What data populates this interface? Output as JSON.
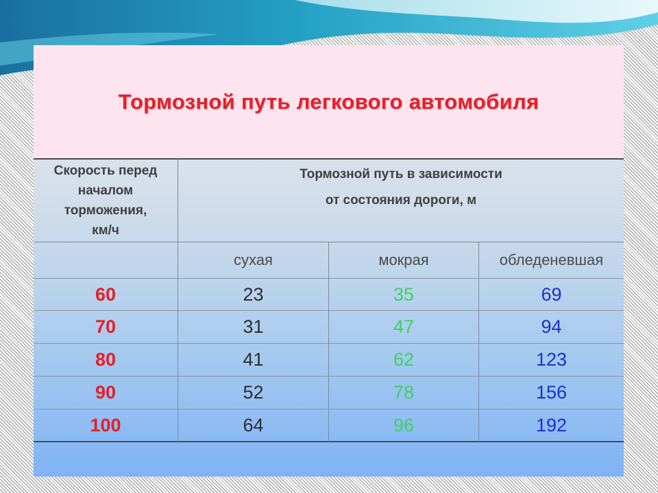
{
  "title": "Тормозной путь легкового автомобиля",
  "headers": {
    "speed_lines": [
      "Скорость перед",
      "началом",
      "торможения,",
      "км/ч"
    ],
    "distance_lines": [
      "Тормозной путь в зависимости",
      "от состояния дороги, м"
    ]
  },
  "conditions": [
    "сухая",
    "мокрая",
    "обледеневшая"
  ],
  "rows": [
    {
      "speed": "60",
      "dry": "23",
      "wet": "35",
      "ice": "69"
    },
    {
      "speed": "70",
      "dry": "31",
      "wet": "47",
      "ice": "94"
    },
    {
      "speed": "80",
      "dry": "41",
      "wet": "62",
      "ice": "123"
    },
    {
      "speed": "90",
      "dry": "52",
      "wet": "78",
      "ice": "156"
    },
    {
      "speed": "100",
      "dry": "64",
      "wet": "96",
      "ice": "192"
    }
  ],
  "colors": {
    "title": "#e5202a",
    "speed": "#e3202a",
    "dry": "#2d2d2d",
    "wet": "#3fcf62",
    "ice": "#1c2fcf",
    "slide_background": "#fde4ee"
  }
}
